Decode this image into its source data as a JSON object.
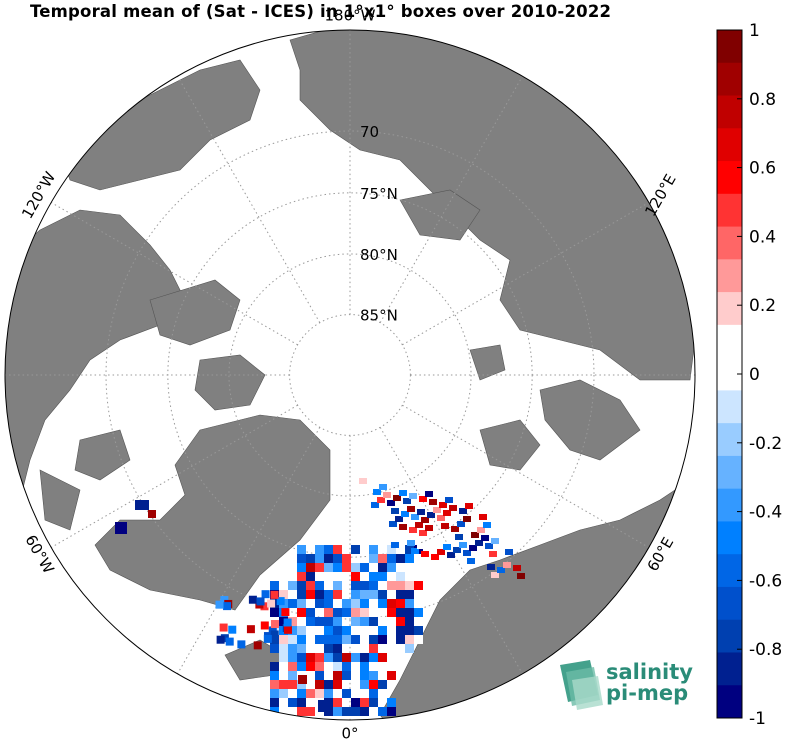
{
  "title": "Temporal mean of (Sat - ICES) in 1°x1° boxes over 2010-2022",
  "map": {
    "projection": "north-polar-stereographic",
    "center_lat": 90,
    "boundary_lat": 62,
    "parallels": [
      {
        "lat": 70,
        "label": "70"
      },
      {
        "lat": 75,
        "label": "75°N"
      },
      {
        "lat": 80,
        "label": "80°N"
      },
      {
        "lat": 85,
        "label": "85°N"
      }
    ],
    "meridian_labels": [
      {
        "lon": 180,
        "label": "180°W"
      },
      {
        "lon": 120,
        "label": "120°E"
      },
      {
        "lon": 60,
        "label": "60°E"
      },
      {
        "lon": 0,
        "label": "0°"
      },
      {
        "lon": -60,
        "label": "60°W"
      },
      {
        "lon": -120,
        "label": "120°W"
      }
    ],
    "land_color": "#808080",
    "ice_color": "#ffffff"
  },
  "colorbar": {
    "min": -1,
    "max": 1,
    "ticks": [
      "1",
      "0.8",
      "0.6",
      "0.4",
      "0.2",
      "0",
      "-0.2",
      "-0.4",
      "-0.6",
      "-0.8",
      "-1"
    ],
    "colors_top_to_bottom": [
      "#800000",
      "#a00000",
      "#c00000",
      "#e00000",
      "#ff0000",
      "#ff3333",
      "#ff6666",
      "#ff9999",
      "#ffcccc",
      "#ffffff",
      "#ffffff",
      "#cce5ff",
      "#99ccff",
      "#66b2ff",
      "#3399ff",
      "#0080ff",
      "#0066e6",
      "#0050cc",
      "#0040b0",
      "#002090",
      "#000080"
    ]
  },
  "logo": {
    "line1": "salinity",
    "line2": "pi-mep",
    "color": "#2a8c78"
  }
}
